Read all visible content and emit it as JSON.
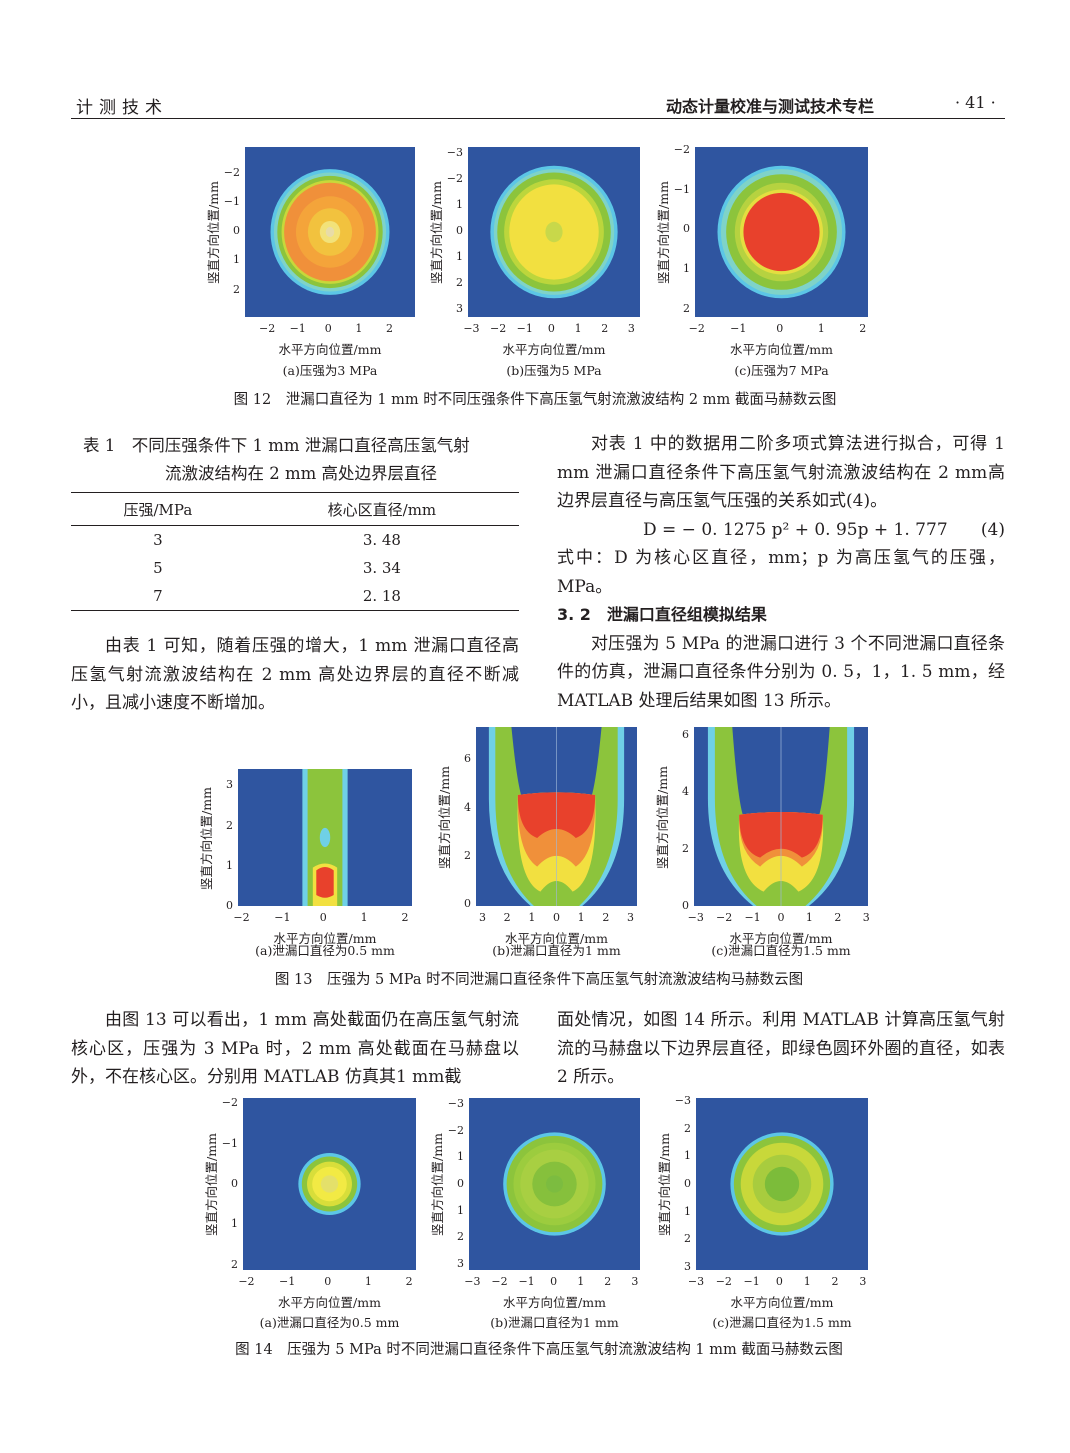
{
  "header": {
    "left": "计测技术",
    "right": "动态计量校准与测试技术专栏",
    "page": "· 41 ·"
  },
  "figures": [
    {
      "caption": "图 12　泄漏口直径为 1 mm 时不同压强条件下高压氢气射流激波结构 2 mm 截面马赫数云图",
      "panels": [
        {
          "caption": "(a)压强为3 MPa",
          "xlabel": "水平方向位置/mm",
          "ylabel": "竖直方向位置/mm",
          "xticks": [
            "−2",
            "−1",
            "0",
            "1",
            "2"
          ],
          "yticks": [
            "−2",
            "−1",
            "0",
            "1",
            "2"
          ]
        },
        {
          "caption": "(b)压强为5 MPa",
          "xlabel": "水平方向位置/mm",
          "ylabel": "竖直方向位置/mm",
          "xticks": [
            "−3",
            "−2",
            "−1",
            "0",
            "1",
            "2",
            "3"
          ],
          "yticks": [
            "−3",
            "−2",
            "1",
            "0",
            "1",
            "2",
            "3"
          ]
        },
        {
          "caption": "(c)压强为7 MPa",
          "xlabel": "水平方向位置/mm",
          "ylabel": "竖直方向位置/mm",
          "xticks": [
            "−2",
            "−1",
            "0",
            "1",
            "2"
          ],
          "yticks": [
            "−2",
            "−1",
            "0",
            "1",
            "2"
          ]
        }
      ]
    },
    {
      "caption": "图 13　压强为 5 MPa 时不同泄漏口直径条件下高压氢气射流激波结构马赫数云图",
      "panels": [
        {
          "caption": "(a)泄漏口直径为0.5 mm",
          "xlabel": "水平方向位置/mm",
          "ylabel": "竖直方向位置/mm",
          "xticks": [
            "−2",
            "−1",
            "0",
            "1",
            "2"
          ],
          "yticks": [
            "3",
            "2",
            "1",
            "0"
          ]
        },
        {
          "caption": "(b)泄漏口直径为1 mm",
          "xlabel": "水平方向位置/mm",
          "ylabel": "竖直方向位置/mm",
          "xticks": [
            "3",
            "2",
            "1",
            "0",
            "1",
            "2",
            "3"
          ],
          "yticks": [
            "6",
            "4",
            "2",
            "0"
          ]
        },
        {
          "caption": "(c)泄漏口直径为1.5 mm",
          "xlabel": "水平方向位置/mm",
          "ylabel": "竖直方向位置/mm",
          "xticks": [
            "−3",
            "−2",
            "−1",
            "0",
            "1",
            "2",
            "3"
          ],
          "yticks": [
            "6",
            "4",
            "2",
            "0"
          ]
        }
      ]
    },
    {
      "caption": "图 14　压强为 5 MPa 时不同泄漏口直径条件下高压氢气射流激波结构 1 mm 截面马赫数云图",
      "panels": [
        {
          "caption": "(a)泄漏口直径为0.5 mm",
          "xlabel": "水平方向位置/mm",
          "ylabel": "竖直方向位置/mm",
          "xticks": [
            "−2",
            "−1",
            "0",
            "1",
            "2"
          ],
          "yticks": [
            "−2",
            "−1",
            "0",
            "1",
            "2"
          ]
        },
        {
          "caption": "(b)泄漏口直径为1 mm",
          "xlabel": "水平方向位置/mm",
          "ylabel": "竖直方向位置/mm",
          "xticks": [
            "−3",
            "−2",
            "−1",
            "0",
            "1",
            "2",
            "3"
          ],
          "yticks": [
            "−3",
            "−2",
            "1",
            "0",
            "1",
            "2",
            "3"
          ]
        },
        {
          "caption": "(c)泄漏口直径为1.5 mm",
          "xlabel": "水平方向位置/mm",
          "ylabel": "竖直方向位置/mm",
          "xticks": [
            "−3",
            "−2",
            "−1",
            "0",
            "1",
            "2",
            "3"
          ],
          "yticks": [
            "−3",
            "2",
            "1",
            "0",
            "1",
            "2",
            "3"
          ]
        }
      ]
    }
  ],
  "table1": {
    "title_line1": "表 1　不同压强条件下 1 mm 泄漏口直径高压氢气射",
    "title_line2": "流激波结构在 2 mm 高处边界层直径",
    "headers": [
      "压强/MPa",
      "核心区直径/mm"
    ],
    "rows": [
      [
        "3",
        "3. 48"
      ],
      [
        "5",
        "3. 34"
      ],
      [
        "7",
        "2. 18"
      ]
    ]
  },
  "text": {
    "left_para1": "由表 1 可知，随着压强的增大，1 mm 泄漏口直径高压氢气射流激波结构在 2 mm 高处边界层的直径不断减小，且减小速度不断增加。",
    "right_para1": "对表 1 中的数据用二阶多项式算法进行拟合，可得 1 mm 泄漏口直径条件下高压氢气射流激波结构在 2 mm高边界层直径与高压氢气压强的关系如式(4)。",
    "equation": "D = − 0. 1275 p² + 0. 95p + 1. 777",
    "equation_number": "(4)",
    "right_para2": "式中：D 为核心区直径，mm；p 为高压氢气的压强，MPa。",
    "section_heading": "3. 2　泄漏口直径组模拟结果",
    "right_para3": "对压强为 5 MPa 的泄漏口进行 3 个不同泄漏口直径条件的仿真，泄漏口直径条件分别为 0. 5，1，1. 5 mm，经 MATLAB 处理后结果如图 13 所示。",
    "left_para2": "由图 13 可以看出，1 mm 高处截面仍在高压氢气射流核心区，压强为 3 MPa 时，2 mm 高处截面在马赫盘以外，不在核心区。分别用 MATLAB 仿真其1 mm截",
    "right_para4": "面处情况，如图 14 所示。利用 MATLAB 计算高压氢气射流的马赫盘以下边界层直径，即绿色圆环外圈的直径，如表 2 所示。"
  },
  "colors": {
    "background_field": "#2f55a0",
    "core_red": "#e8412c",
    "yellow": "#f2e040",
    "green": "#8cc43c",
    "cyan": "#6fd0e6"
  }
}
